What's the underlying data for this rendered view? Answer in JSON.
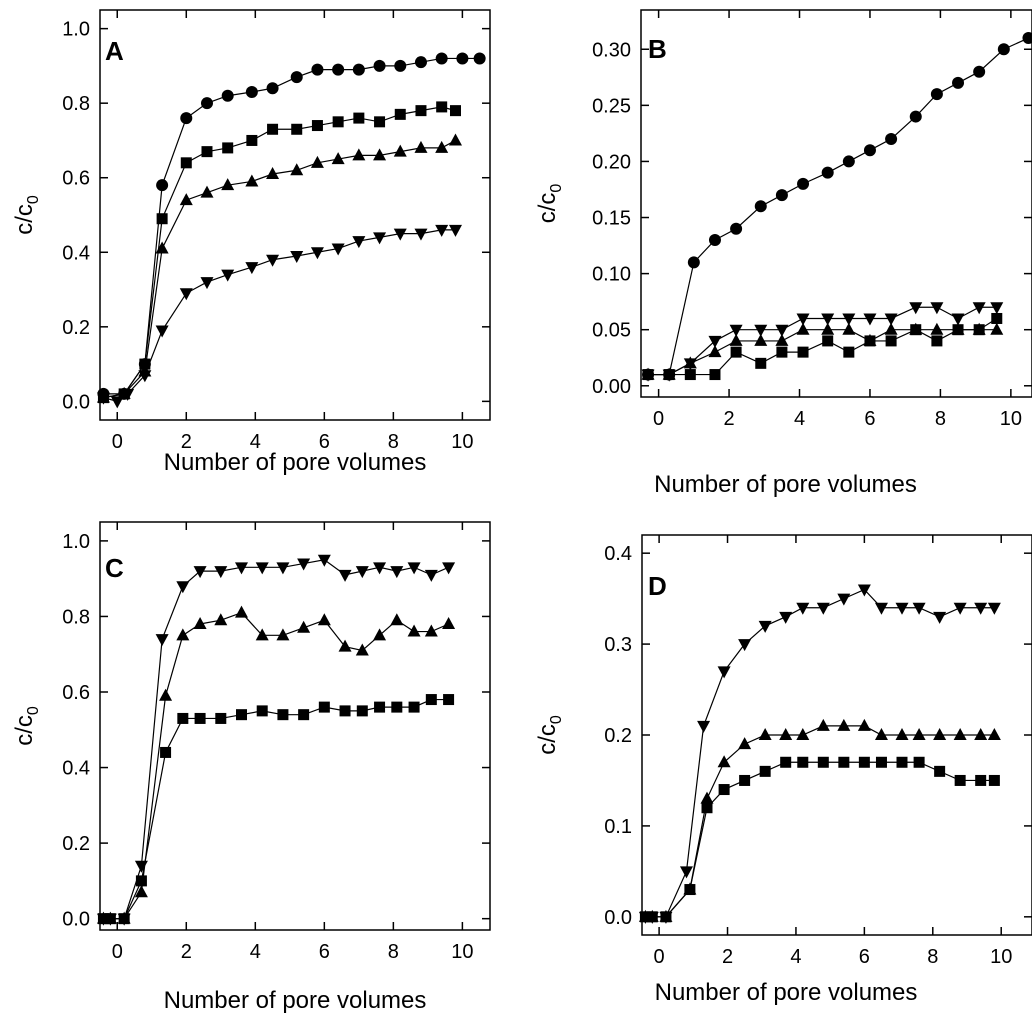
{
  "figure": {
    "ylabel_main": "c/c",
    "ylabel_sub": "0",
    "xlabel": "Number of pore volumes"
  },
  "chart_data": [
    {
      "panel": "A",
      "type": "line",
      "xlabel": "Number of pore volumes",
      "ylabel": "c/c0",
      "xlim": [
        -0.5,
        10.8
      ],
      "ylim": [
        -0.05,
        1.05
      ],
      "xticks": [
        0,
        2,
        4,
        6,
        8,
        10
      ],
      "yticks": [
        0.0,
        0.2,
        0.4,
        0.6,
        0.8,
        1.0
      ],
      "ytick_labels": [
        "0.0",
        "0.2",
        "0.4",
        "0.6",
        "0.8",
        "1.0"
      ],
      "series": [
        {
          "marker": "circle",
          "x": [
            -0.4,
            0.2,
            0.8,
            1.3,
            2.0,
            2.6,
            3.2,
            3.9,
            4.5,
            5.2,
            5.8,
            6.4,
            7.0,
            7.6,
            8.2,
            8.8,
            9.4,
            10.0,
            10.5
          ],
          "y": [
            0.02,
            0.02,
            0.1,
            0.58,
            0.76,
            0.8,
            0.82,
            0.83,
            0.84,
            0.87,
            0.89,
            0.89,
            0.89,
            0.9,
            0.9,
            0.91,
            0.92,
            0.92,
            0.92
          ]
        },
        {
          "marker": "square",
          "x": [
            -0.4,
            0.2,
            0.8,
            1.3,
            2.0,
            2.6,
            3.2,
            3.9,
            4.5,
            5.2,
            5.8,
            6.4,
            7.0,
            7.6,
            8.2,
            8.8,
            9.4,
            9.8
          ],
          "y": [
            0.01,
            0.02,
            0.1,
            0.49,
            0.64,
            0.67,
            0.68,
            0.7,
            0.73,
            0.73,
            0.74,
            0.75,
            0.76,
            0.75,
            0.77,
            0.78,
            0.79,
            0.78
          ]
        },
        {
          "marker": "triangle-up",
          "x": [
            -0.4,
            0.2,
            0.8,
            1.3,
            2.0,
            2.6,
            3.2,
            3.9,
            4.5,
            5.2,
            5.8,
            6.4,
            7.0,
            7.6,
            8.2,
            8.8,
            9.4,
            9.8
          ],
          "y": [
            0.01,
            0.02,
            0.08,
            0.41,
            0.54,
            0.56,
            0.58,
            0.59,
            0.61,
            0.62,
            0.64,
            0.65,
            0.66,
            0.66,
            0.67,
            0.68,
            0.68,
            0.7
          ]
        },
        {
          "marker": "triangle-down",
          "x": [
            -0.4,
            0.0,
            0.3,
            0.8,
            1.3,
            2.0,
            2.6,
            3.2,
            3.9,
            4.5,
            5.2,
            5.8,
            6.4,
            7.0,
            7.6,
            8.2,
            8.8,
            9.4,
            9.8
          ],
          "y": [
            0.01,
            0.0,
            0.02,
            0.07,
            0.19,
            0.29,
            0.32,
            0.34,
            0.36,
            0.38,
            0.39,
            0.4,
            0.41,
            0.43,
            0.44,
            0.45,
            0.45,
            0.46,
            0.46
          ]
        }
      ]
    },
    {
      "panel": "B",
      "type": "line",
      "xlabel": "Number of pore volumes",
      "ylabel": "c/c0",
      "xlim": [
        -0.5,
        10.6
      ],
      "ylim": [
        -0.01,
        0.335
      ],
      "xticks": [
        0,
        2,
        4,
        6,
        8,
        10
      ],
      "yticks": [
        0.0,
        0.05,
        0.1,
        0.15,
        0.2,
        0.25,
        0.3
      ],
      "ytick_labels": [
        "0.00",
        "0.05",
        "0.10",
        "0.15",
        "0.20",
        "0.25",
        "0.30"
      ],
      "series": [
        {
          "marker": "circle",
          "x": [
            -0.3,
            0.3,
            1.0,
            1.6,
            2.2,
            2.9,
            3.5,
            4.1,
            4.8,
            5.4,
            6.0,
            6.6,
            7.3,
            7.9,
            8.5,
            9.1,
            9.8,
            10.5
          ],
          "y": [
            0.01,
            0.01,
            0.11,
            0.13,
            0.14,
            0.16,
            0.17,
            0.18,
            0.19,
            0.2,
            0.21,
            0.22,
            0.24,
            0.26,
            0.27,
            0.28,
            0.3,
            0.31
          ]
        },
        {
          "marker": "triangle-down",
          "x": [
            -0.3,
            0.3,
            0.9,
            1.6,
            2.2,
            2.9,
            3.5,
            4.1,
            4.8,
            5.4,
            6.0,
            6.6,
            7.3,
            7.9,
            8.5,
            9.1,
            9.6
          ],
          "y": [
            0.01,
            0.01,
            0.02,
            0.04,
            0.05,
            0.05,
            0.05,
            0.06,
            0.06,
            0.06,
            0.06,
            0.06,
            0.07,
            0.07,
            0.06,
            0.07,
            0.07
          ]
        },
        {
          "marker": "triangle-up",
          "x": [
            -0.3,
            0.3,
            0.9,
            1.6,
            2.2,
            2.9,
            3.5,
            4.1,
            4.8,
            5.4,
            6.0,
            6.6,
            7.3,
            7.9,
            8.5,
            9.1,
            9.6
          ],
          "y": [
            0.01,
            0.01,
            0.02,
            0.03,
            0.04,
            0.04,
            0.04,
            0.05,
            0.05,
            0.05,
            0.04,
            0.05,
            0.05,
            0.05,
            0.05,
            0.05,
            0.05
          ]
        },
        {
          "marker": "square",
          "x": [
            -0.3,
            0.3,
            0.9,
            1.6,
            2.2,
            2.9,
            3.5,
            4.1,
            4.8,
            5.4,
            6.0,
            6.6,
            7.3,
            7.9,
            8.5,
            9.1,
            9.6
          ],
          "y": [
            0.01,
            0.01,
            0.01,
            0.01,
            0.03,
            0.02,
            0.03,
            0.03,
            0.04,
            0.03,
            0.04,
            0.04,
            0.05,
            0.04,
            0.05,
            0.05,
            0.06
          ]
        }
      ]
    },
    {
      "panel": "C",
      "type": "line",
      "xlabel": "Number of pore volumes",
      "ylabel": "c/c0",
      "xlim": [
        -0.5,
        10.8
      ],
      "ylim": [
        -0.03,
        1.05
      ],
      "xticks": [
        0,
        2,
        4,
        6,
        8,
        10
      ],
      "yticks": [
        0.0,
        0.2,
        0.4,
        0.6,
        0.8,
        1.0
      ],
      "ytick_labels": [
        "0.0",
        "0.2",
        "0.4",
        "0.6",
        "0.8",
        "1.0"
      ],
      "series": [
        {
          "marker": "triangle-down",
          "x": [
            -0.4,
            -0.2,
            0.2,
            0.7,
            1.3,
            1.9,
            2.4,
            3.0,
            3.6,
            4.2,
            4.8,
            5.4,
            6.0,
            6.6,
            7.1,
            7.6,
            8.1,
            8.6,
            9.1,
            9.6
          ],
          "y": [
            0.0,
            0.0,
            0.0,
            0.14,
            0.74,
            0.88,
            0.92,
            0.92,
            0.93,
            0.93,
            0.93,
            0.94,
            0.95,
            0.91,
            0.92,
            0.93,
            0.92,
            0.93,
            0.91,
            0.93
          ]
        },
        {
          "marker": "triangle-up",
          "x": [
            -0.4,
            -0.2,
            0.2,
            0.7,
            1.4,
            1.9,
            2.4,
            3.0,
            3.6,
            4.2,
            4.8,
            5.4,
            6.0,
            6.6,
            7.1,
            7.6,
            8.1,
            8.6,
            9.1,
            9.6
          ],
          "y": [
            0.0,
            0.0,
            0.0,
            0.07,
            0.59,
            0.75,
            0.78,
            0.79,
            0.81,
            0.75,
            0.75,
            0.77,
            0.79,
            0.72,
            0.71,
            0.75,
            0.79,
            0.76,
            0.76,
            0.78
          ]
        },
        {
          "marker": "square",
          "x": [
            -0.4,
            -0.2,
            0.2,
            0.7,
            1.4,
            1.9,
            2.4,
            3.0,
            3.6,
            4.2,
            4.8,
            5.4,
            6.0,
            6.6,
            7.1,
            7.6,
            8.1,
            8.6,
            9.1,
            9.6
          ],
          "y": [
            0.0,
            0.0,
            0.0,
            0.1,
            0.44,
            0.53,
            0.53,
            0.53,
            0.54,
            0.55,
            0.54,
            0.54,
            0.56,
            0.55,
            0.55,
            0.56,
            0.56,
            0.56,
            0.58,
            0.58
          ]
        }
      ]
    },
    {
      "panel": "D",
      "type": "line",
      "xlabel": "Number of pore volumes",
      "ylabel": "c/c0",
      "xlim": [
        -0.5,
        10.9
      ],
      "ylim": [
        -0.02,
        0.42
      ],
      "xticks": [
        0,
        2,
        4,
        6,
        8,
        10
      ],
      "yticks": [
        0.0,
        0.1,
        0.2,
        0.3,
        0.4
      ],
      "ytick_labels": [
        "0.0",
        "0.1",
        "0.2",
        "0.3",
        "0.4"
      ],
      "series": [
        {
          "marker": "triangle-down",
          "x": [
            -0.4,
            -0.2,
            0.2,
            0.8,
            1.3,
            1.9,
            2.5,
            3.1,
            3.7,
            4.2,
            4.8,
            5.4,
            6.0,
            6.5,
            7.1,
            7.6,
            8.2,
            8.8,
            9.4,
            9.8
          ],
          "y": [
            0.0,
            0.0,
            0.0,
            0.05,
            0.21,
            0.27,
            0.3,
            0.32,
            0.33,
            0.34,
            0.34,
            0.35,
            0.36,
            0.34,
            0.34,
            0.34,
            0.33,
            0.34,
            0.34,
            0.34
          ]
        },
        {
          "marker": "triangle-up",
          "x": [
            -0.4,
            -0.2,
            0.2,
            0.9,
            1.4,
            1.9,
            2.5,
            3.1,
            3.7,
            4.2,
            4.8,
            5.4,
            6.0,
            6.5,
            7.1,
            7.6,
            8.2,
            8.8,
            9.4,
            9.8
          ],
          "y": [
            0.0,
            0.0,
            0.0,
            0.03,
            0.13,
            0.17,
            0.19,
            0.2,
            0.2,
            0.2,
            0.21,
            0.21,
            0.21,
            0.2,
            0.2,
            0.2,
            0.2,
            0.2,
            0.2,
            0.2
          ]
        },
        {
          "marker": "square",
          "x": [
            -0.4,
            -0.2,
            0.2,
            0.9,
            1.4,
            1.9,
            2.5,
            3.1,
            3.7,
            4.2,
            4.8,
            5.4,
            6.0,
            6.5,
            7.1,
            7.6,
            8.2,
            8.8,
            9.4,
            9.8
          ],
          "y": [
            0.0,
            0.0,
            0.0,
            0.03,
            0.12,
            0.14,
            0.15,
            0.16,
            0.17,
            0.17,
            0.17,
            0.17,
            0.17,
            0.17,
            0.17,
            0.17,
            0.16,
            0.15,
            0.15,
            0.15
          ]
        }
      ]
    }
  ]
}
